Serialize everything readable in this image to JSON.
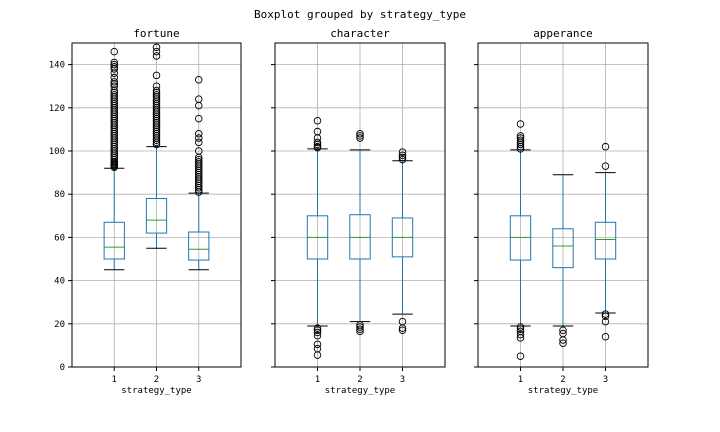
{
  "figure": {
    "suptitle": "Boxplot grouped by strategy_type"
  },
  "colors": {
    "box": "#1f77b4",
    "median": "#2ca02c",
    "grid": "#b0b0b0",
    "axis": "#000000"
  },
  "chart_data": [
    {
      "type": "boxplot",
      "title": "fortune",
      "xlabel": "strategy_type",
      "ylabel": "",
      "ylim": [
        0,
        150
      ],
      "yticks": [
        0,
        20,
        40,
        60,
        80,
        100,
        120,
        140
      ],
      "categories": [
        "1",
        "2",
        "3"
      ],
      "grid": true,
      "boxes": [
        {
          "category": "1",
          "whisker_low": 45,
          "q1": 50,
          "median": 55.5,
          "q3": 67,
          "whisker_high": 92,
          "outliers": [
            92.5,
            93,
            93.5,
            94,
            94.5,
            95,
            96,
            97,
            98,
            99,
            100,
            101,
            102,
            103,
            104,
            105,
            106,
            107,
            108,
            109,
            110,
            111,
            112,
            113,
            114,
            115,
            116,
            117,
            118,
            119,
            120,
            121,
            122,
            123,
            124,
            125,
            126,
            127,
            128,
            130,
            131,
            132,
            134,
            136,
            138,
            139,
            140,
            141,
            146
          ]
        },
        {
          "category": "2",
          "whisker_low": 55,
          "q1": 62,
          "median": 68,
          "q3": 78,
          "whisker_high": 102,
          "outliers": [
            103,
            104,
            105,
            106,
            107,
            108,
            109,
            110,
            111,
            112,
            113,
            114,
            115,
            116,
            117,
            118,
            119,
            120,
            121,
            122,
            123,
            124,
            125,
            126,
            127,
            128,
            130,
            135,
            144,
            146,
            148
          ]
        },
        {
          "category": "3",
          "whisker_low": 45,
          "q1": 49.5,
          "median": 54.5,
          "q3": 62.5,
          "whisker_high": 80.5,
          "outliers": [
            81,
            82,
            83,
            84,
            85,
            86,
            87,
            88,
            89,
            90,
            91,
            92,
            93,
            94,
            95,
            96,
            97,
            100,
            104,
            106,
            108,
            115,
            121,
            124,
            133
          ]
        }
      ]
    },
    {
      "type": "boxplot",
      "title": "character",
      "xlabel": "strategy_type",
      "ylabel": "",
      "ylim": [
        0,
        150
      ],
      "yticks": [
        0,
        20,
        40,
        60,
        80,
        100,
        120,
        140
      ],
      "categories": [
        "1",
        "2",
        "3"
      ],
      "grid": true,
      "boxes": [
        {
          "category": "1",
          "whisker_low": 19,
          "q1": 50,
          "median": 60,
          "q3": 70,
          "whisker_high": 101,
          "outliers": [
            5.5,
            8.5,
            10.5,
            14.5,
            16,
            17,
            18,
            101.5,
            102,
            103,
            104,
            106,
            109,
            114
          ]
        },
        {
          "category": "2",
          "whisker_low": 21,
          "q1": 50,
          "median": 60,
          "q3": 70.5,
          "whisker_high": 100.5,
          "outliers": [
            16.5,
            17.5,
            18.5,
            19.5,
            106,
            107,
            108
          ]
        },
        {
          "category": "3",
          "whisker_low": 24.5,
          "q1": 51,
          "median": 60,
          "q3": 69,
          "whisker_high": 95.5,
          "outliers": [
            17,
            18,
            21,
            96,
            97,
            98,
            99.5
          ]
        }
      ]
    },
    {
      "type": "boxplot",
      "title": "apperance",
      "xlabel": "strategy_type",
      "ylabel": "",
      "ylim": [
        0,
        150
      ],
      "yticks": [
        0,
        20,
        40,
        60,
        80,
        100,
        120,
        140
      ],
      "categories": [
        "1",
        "2",
        "3"
      ],
      "grid": true,
      "boxes": [
        {
          "category": "1",
          "whisker_low": 19,
          "q1": 49.5,
          "median": 60,
          "q3": 70,
          "whisker_high": 100.5,
          "outliers": [
            5,
            13.5,
            15,
            16.5,
            17.5,
            18.5,
            101,
            102,
            103,
            104,
            105,
            106,
            107,
            112.5
          ]
        },
        {
          "category": "2",
          "whisker_low": 19,
          "q1": 46,
          "median": 56,
          "q3": 64,
          "whisker_high": 89,
          "outliers": [
            11,
            12.5,
            15.5,
            17
          ]
        },
        {
          "category": "3",
          "whisker_low": 25,
          "q1": 50,
          "median": 59,
          "q3": 67,
          "whisker_high": 90,
          "outliers": [
            14,
            21,
            23.5,
            24.5,
            93,
            102
          ]
        }
      ]
    }
  ]
}
